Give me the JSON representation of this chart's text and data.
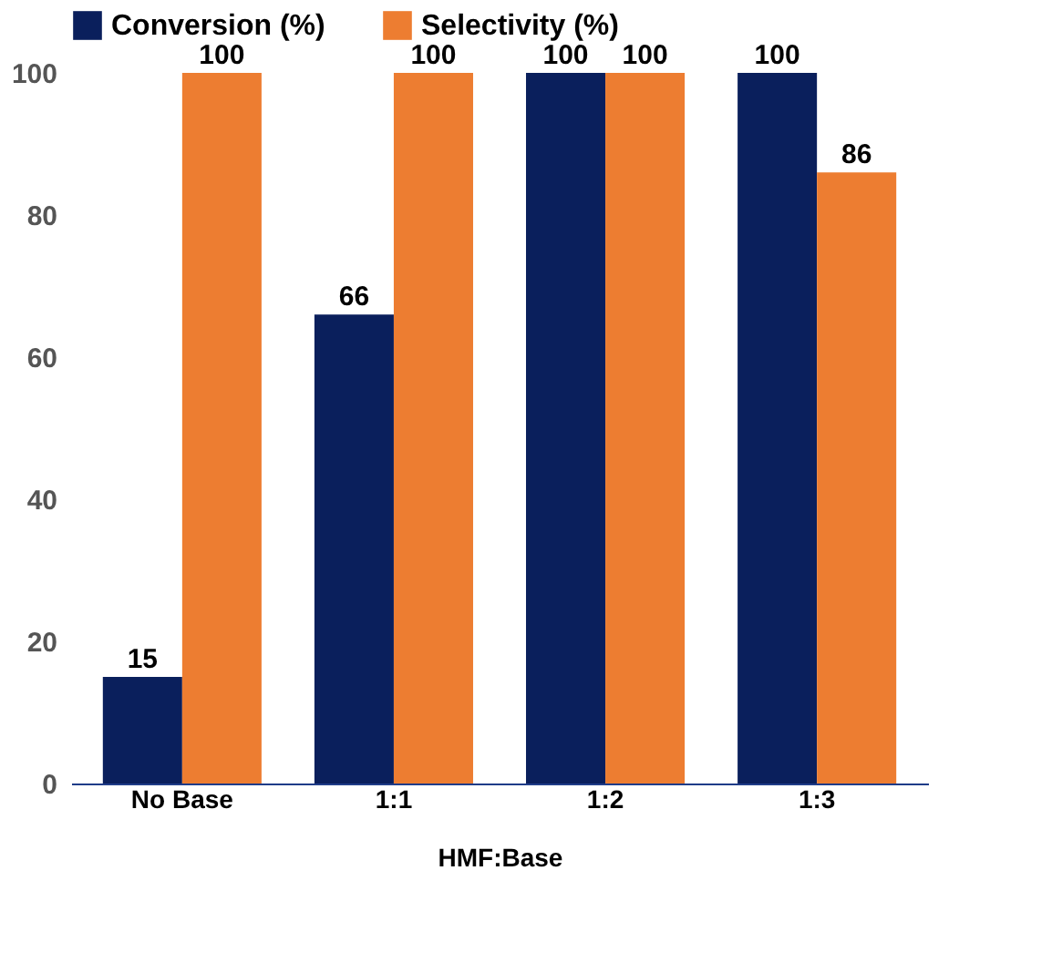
{
  "chart_data": {
    "type": "bar",
    "xlabel": "HMF:Base",
    "categories": [
      "No Base",
      "1:1",
      "1:2",
      "1:3"
    ],
    "series": [
      {
        "name": "Conversion (%)",
        "color": "#0a1f5c",
        "values": [
          15,
          66,
          100,
          100
        ]
      },
      {
        "name": "Selectivity (%)",
        "color": "#ed7d31",
        "values": [
          100,
          100,
          100,
          86
        ]
      }
    ],
    "ylim": [
      0,
      100
    ],
    "yticks": [
      0,
      20,
      40,
      60,
      80,
      100
    ],
    "grid": false,
    "legend": "top",
    "data_labels": true
  }
}
